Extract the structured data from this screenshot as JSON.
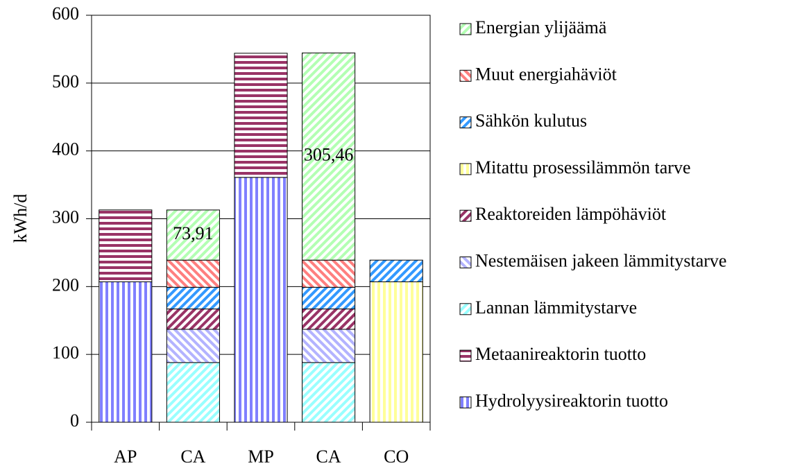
{
  "chart_data": {
    "type": "stacked-bar",
    "y_label": "kWh/d",
    "categories": [
      "AP",
      "CA",
      "MP",
      "CA",
      "CO"
    ],
    "ylim": [
      0,
      600
    ],
    "yticks": [
      0,
      100,
      200,
      300,
      400,
      500,
      600
    ],
    "grid": true,
    "series": [
      {
        "name": "Hydrolyysireaktorin tuotto",
        "color": "#8080ff",
        "hatch": "vertical",
        "values": [
          207,
          null,
          361,
          null,
          null
        ]
      },
      {
        "name": "Metaanireaktorin tuotto",
        "color": "#993366",
        "hatch": "horizontal",
        "values": [
          106,
          null,
          183,
          null,
          null
        ]
      },
      {
        "name": "Lannan lämmitystarve",
        "color": "#99ffff",
        "hatch": "diagonal",
        "values": [
          null,
          88,
          null,
          88,
          null
        ]
      },
      {
        "name": "Nestemäisen jakeen lämmitystarve",
        "color": "#b3b3ff",
        "hatch": "diagonal-back",
        "values": [
          null,
          49,
          null,
          49,
          null
        ]
      },
      {
        "name": "Reaktoreiden lämpöhäviöt",
        "color": "#993366",
        "hatch": "diagonal",
        "values": [
          null,
          30,
          null,
          30,
          null
        ]
      },
      {
        "name": "Mitattu prosessilämmön tarve",
        "color": "#ffff99",
        "hatch": "vertical",
        "values": [
          null,
          null,
          null,
          null,
          207
        ]
      },
      {
        "name": "Sähkön kulutus",
        "color": "#3399ff",
        "hatch": "diagonal",
        "values": [
          null,
          32,
          null,
          32,
          32
        ]
      },
      {
        "name": "Muut energiahäviöt",
        "color": "#ff7f7f",
        "hatch": "diagonal-back",
        "values": [
          null,
          40,
          null,
          40,
          null
        ]
      },
      {
        "name": "Energian ylijäämä",
        "color": "#b3ffb3",
        "hatch": "diagonal",
        "values": [
          null,
          73.91,
          null,
          305.46,
          null
        ],
        "value_labels": [
          null,
          "73,91",
          null,
          "305,46",
          null
        ]
      }
    ]
  }
}
